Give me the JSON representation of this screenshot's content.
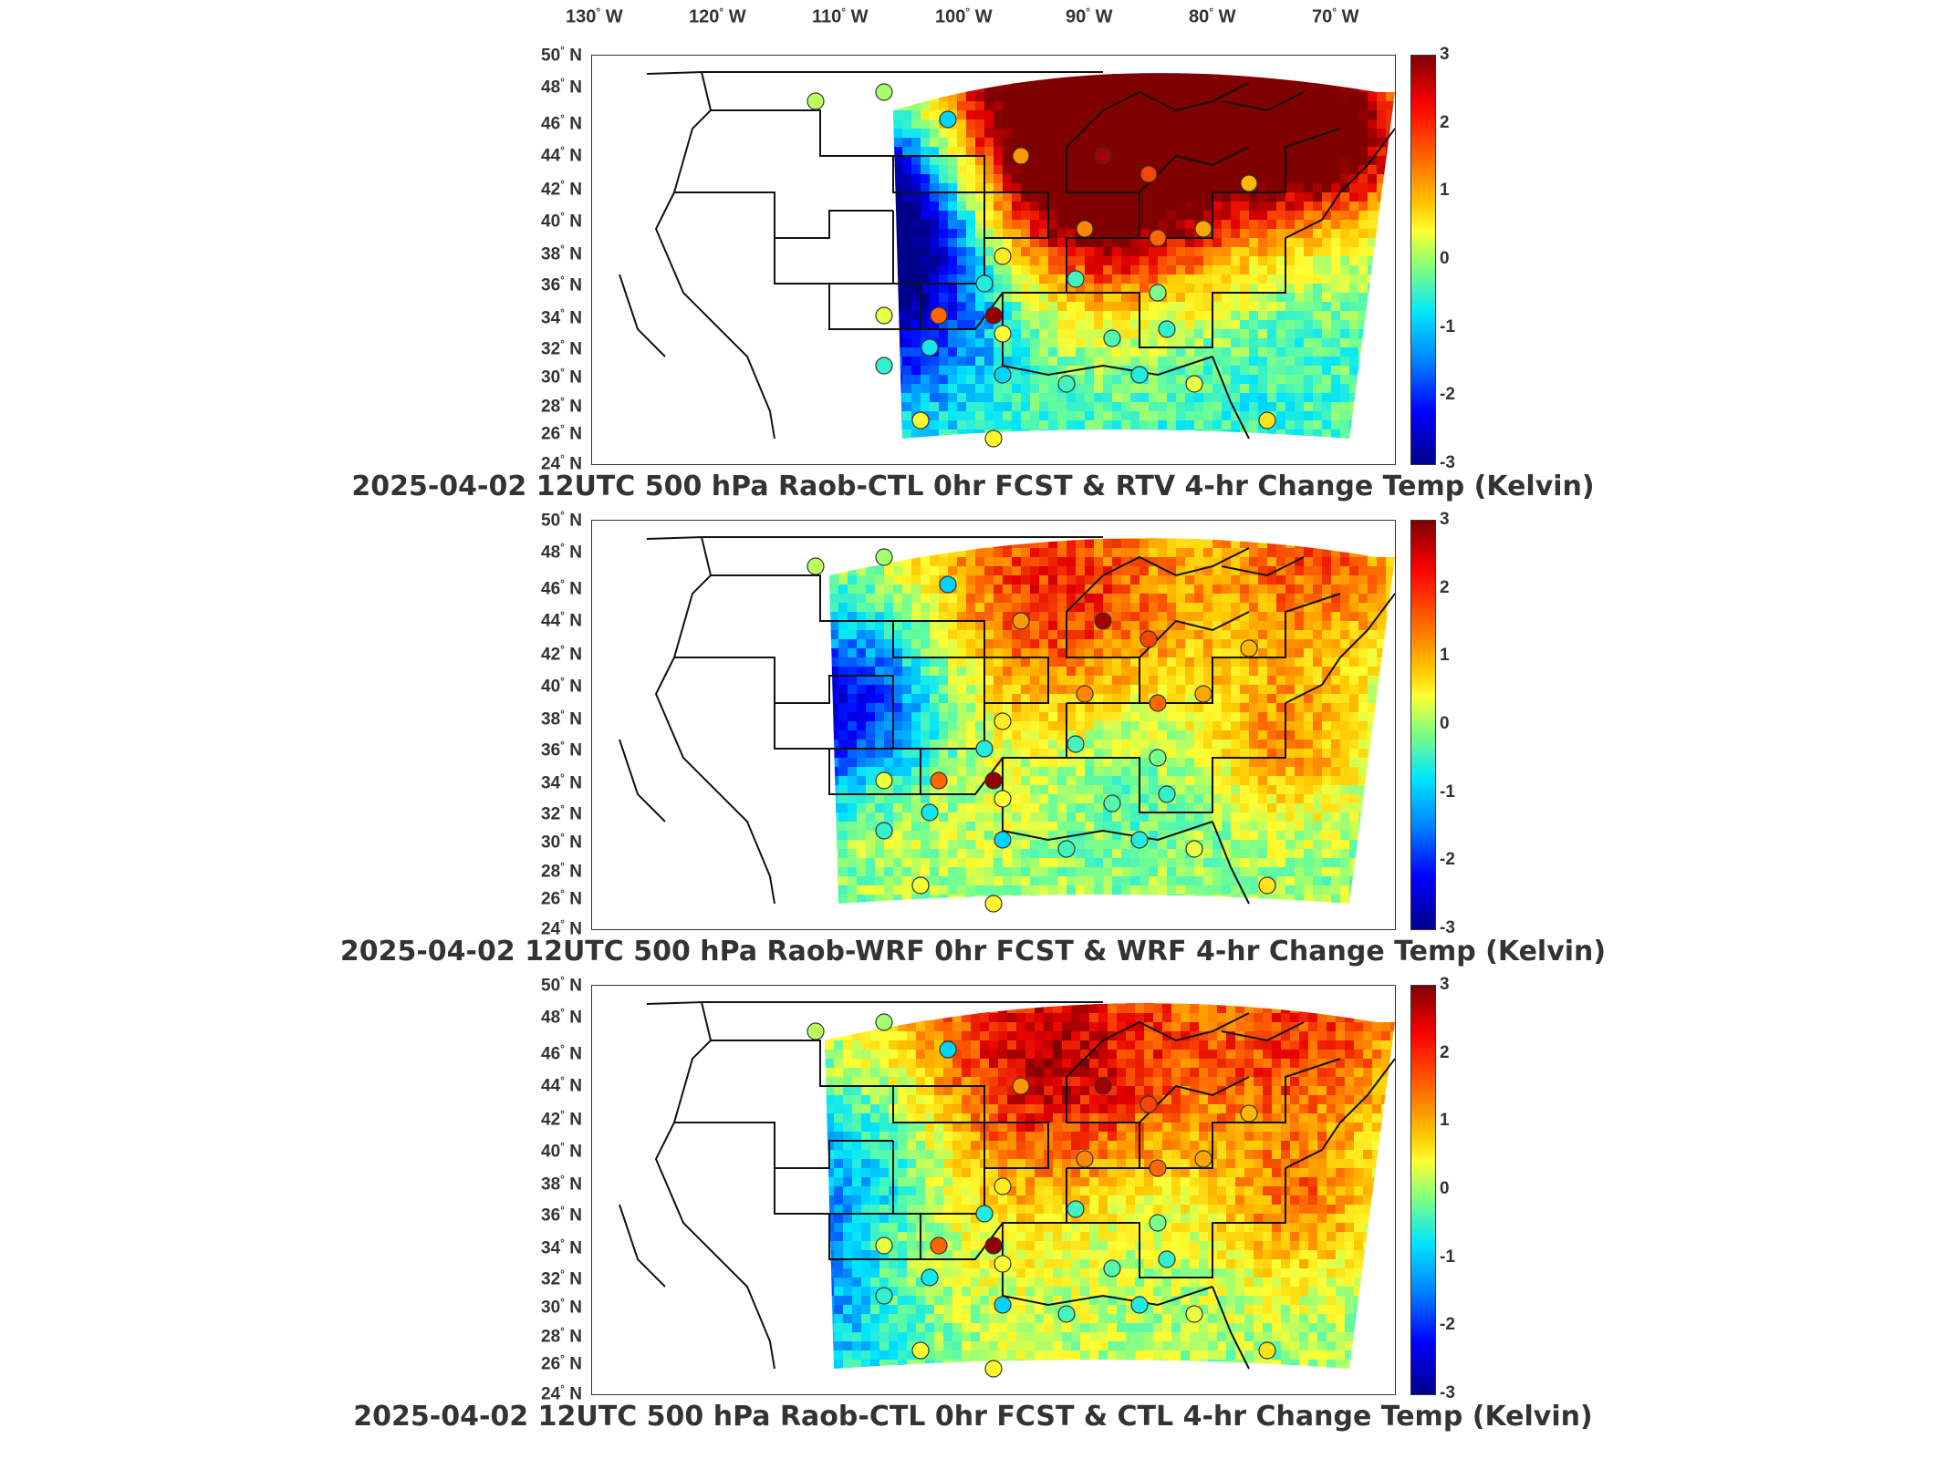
{
  "longitude_labels": [
    "130",
    "120",
    "110",
    "100",
    "90",
    "80",
    "70"
  ],
  "longitude_suffix": "W",
  "latitude_labels": [
    "50",
    "48",
    "46",
    "44",
    "42",
    "40",
    "38",
    "36",
    "34",
    "32",
    "30",
    "28",
    "26",
    "24"
  ],
  "latitude_suffix": "N",
  "colorbar": {
    "ticks": [
      "3",
      "2",
      "1",
      "0",
      "-1",
      "-2",
      "-3"
    ],
    "min": -3,
    "max": 3,
    "colors": [
      "#800000",
      "#ff0000",
      "#ff6600",
      "#ffcc00",
      "#ffff33",
      "#7fff7f",
      "#00e5ff",
      "#0080ff",
      "#0000ff",
      "#00008b"
    ]
  },
  "panels": [
    {
      "caption": "2025-04-02 12UTC 500 hPa Raob-CTL 0hr FCST & RTV 4-hr Change Temp (Kelvin)"
    },
    {
      "caption": "2025-04-02 12UTC 500 hPa Raob-WRF 0hr FCST & WRF 4-hr Change Temp (Kelvin)"
    },
    {
      "caption": "2025-04-02 12UTC 500 hPa Raob-CTL 0hr FCST & CTL 4-hr Change Temp (Kelvin)"
    }
  ]
}
